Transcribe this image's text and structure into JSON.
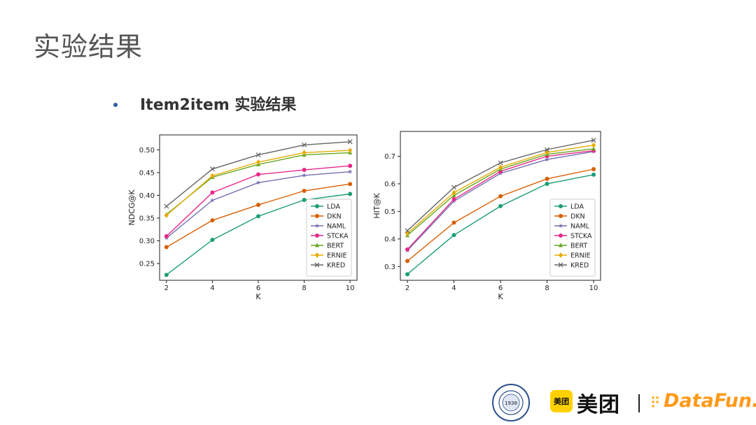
{
  "page": {
    "title": "实验结果",
    "bullet": "Item2item 实验结果"
  },
  "footer": {
    "seal_text": "1938",
    "meituan_badge": "美团",
    "meituan_word": "美团",
    "separator": "|",
    "datafun": "DataFun."
  },
  "colors": {
    "LDA": "#1b9e77",
    "DKN": "#d95f02",
    "NAML": "#7570b3",
    "STCKA": "#e7298a",
    "BERT": "#66a61e",
    "ERNIE": "#e6ab02",
    "KRED": "#666666"
  },
  "chart_data": [
    {
      "type": "line",
      "xlabel": "K",
      "ylabel": "NDCG@K",
      "x": [
        2,
        4,
        6,
        8,
        10
      ],
      "xticks": [
        "2",
        "4",
        "6",
        "8",
        "10"
      ],
      "yticks": [
        "0.25",
        "0.30",
        "0.35",
        "0.40",
        "0.45",
        "0.50"
      ],
      "xlim": [
        1.7,
        10.3
      ],
      "ylim": [
        0.213,
        0.533
      ],
      "legend_position": "lower-right",
      "series": [
        {
          "name": "LDA",
          "marker": "circle",
          "values": [
            0.225,
            0.302,
            0.354,
            0.39,
            0.403
          ]
        },
        {
          "name": "DKN",
          "marker": "circle",
          "values": [
            0.286,
            0.345,
            0.379,
            0.41,
            0.425
          ]
        },
        {
          "name": "NAML",
          "marker": "star",
          "values": [
            0.306,
            0.389,
            0.428,
            0.444,
            0.452
          ]
        },
        {
          "name": "STCKA",
          "marker": "circle",
          "values": [
            0.31,
            0.406,
            0.446,
            0.456,
            0.465
          ]
        },
        {
          "name": "BERT",
          "marker": "triangle",
          "values": [
            0.358,
            0.44,
            0.468,
            0.489,
            0.494
          ]
        },
        {
          "name": "ERNIE",
          "marker": "diamond",
          "values": [
            0.356,
            0.443,
            0.473,
            0.494,
            0.499
          ]
        },
        {
          "name": "KRED",
          "marker": "x",
          "values": [
            0.376,
            0.458,
            0.489,
            0.511,
            0.518
          ]
        }
      ]
    },
    {
      "type": "line",
      "xlabel": "K",
      "ylabel": "HIT@K",
      "x": [
        2,
        4,
        6,
        8,
        10
      ],
      "xticks": [
        "2",
        "4",
        "6",
        "8",
        "10"
      ],
      "yticks": [
        "0.3",
        "0.4",
        "0.5",
        "0.6",
        "0.7"
      ],
      "xlim": [
        1.7,
        10.3
      ],
      "ylim": [
        0.25,
        0.79
      ],
      "legend_position": "lower-right",
      "series": [
        {
          "name": "LDA",
          "marker": "circle",
          "values": [
            0.272,
            0.414,
            0.519,
            0.6,
            0.633
          ]
        },
        {
          "name": "DKN",
          "marker": "circle",
          "values": [
            0.32,
            0.459,
            0.555,
            0.618,
            0.653
          ]
        },
        {
          "name": "NAML",
          "marker": "star",
          "values": [
            0.358,
            0.537,
            0.638,
            0.688,
            0.717
          ]
        },
        {
          "name": "STCKA",
          "marker": "circle",
          "values": [
            0.362,
            0.544,
            0.645,
            0.7,
            0.72
          ]
        },
        {
          "name": "BERT",
          "marker": "triangle",
          "values": [
            0.413,
            0.558,
            0.653,
            0.707,
            0.727
          ]
        },
        {
          "name": "ERNIE",
          "marker": "diamond",
          "values": [
            0.42,
            0.568,
            0.66,
            0.714,
            0.74
          ]
        },
        {
          "name": "KRED",
          "marker": "x",
          "values": [
            0.43,
            0.587,
            0.676,
            0.724,
            0.758
          ]
        }
      ]
    }
  ]
}
